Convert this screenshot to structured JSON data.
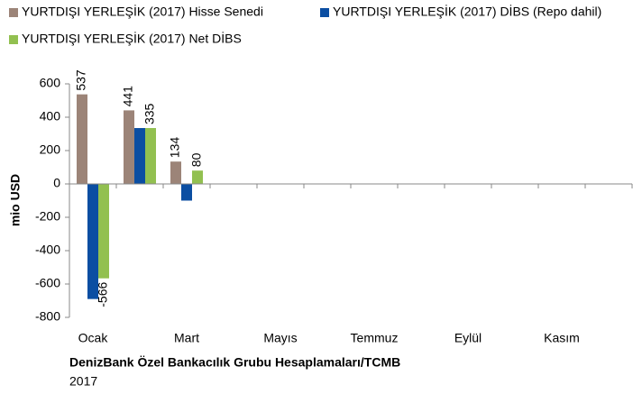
{
  "chart_data": {
    "type": "bar",
    "y_axis_label": "mio USD",
    "source": "DenizBank Özel Bankacılık Grubu Hesaplamaları/TCMB",
    "note": "2017",
    "categories": [
      "Ocak",
      null,
      "Mart",
      null,
      "Mayıs",
      null,
      "Temmuz",
      null,
      "Eylül",
      null,
      "Kasım",
      null
    ],
    "series": [
      {
        "name": "YURTDIŞI YERLEŞİK (2017) Hisse Senedi",
        "color": "#9c8478",
        "show_labels": true,
        "values": [
          537,
          441,
          134,
          null,
          null,
          null,
          null,
          null,
          null,
          null,
          null,
          null
        ]
      },
      {
        "name": "YURTDIŞI YERLEŞİK (2017) DİBS (Repo dahil)",
        "color": "#0b4ea2",
        "show_labels": false,
        "values": [
          -690,
          335,
          -100,
          null,
          null,
          null,
          null,
          null,
          null,
          null,
          null,
          null
        ]
      },
      {
        "name": "YURTDIŞI YERLEŞİK (2017) Net DİBS",
        "color": "#92c050",
        "show_labels": true,
        "values": [
          -566,
          335,
          80,
          null,
          null,
          null,
          null,
          null,
          null,
          null,
          null,
          null
        ]
      }
    ],
    "ylim": [
      -800,
      600
    ],
    "yticks": [
      -800,
      -600,
      -400,
      -200,
      0,
      200,
      400,
      600
    ]
  }
}
